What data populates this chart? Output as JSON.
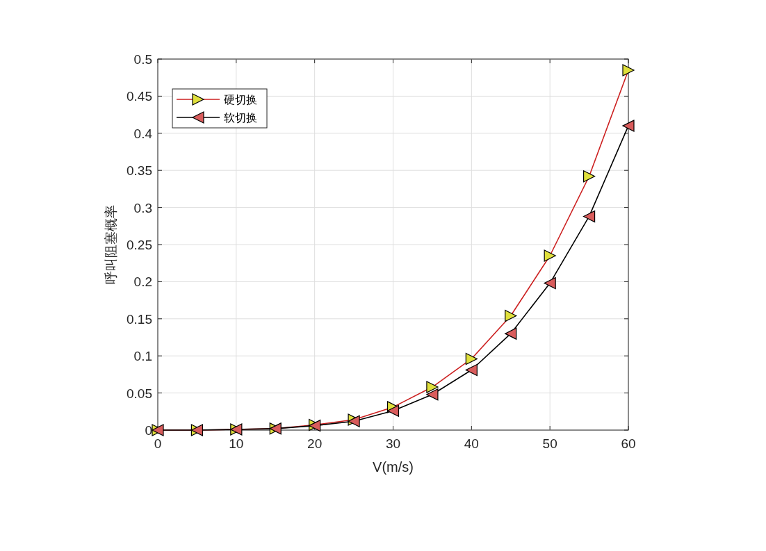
{
  "chart_data": {
    "type": "line",
    "xlabel": "V(m/s)",
    "ylabel": "呼叫阻塞概率",
    "x": [
      0,
      5,
      10,
      15,
      20,
      25,
      30,
      35,
      40,
      45,
      50,
      55,
      60
    ],
    "series": [
      {
        "name": "硬切换",
        "color": "#cc2020",
        "colors": [
          "#e0e03c",
          "#e0e03c",
          "#e0e03c",
          "#e0e03c",
          "#e0e03c",
          "#e0e03c",
          "#e0e03c",
          "#e0e03c",
          "#e0e03c",
          "#e0e03c",
          "#e0e03c",
          "#e0e03c",
          "#e0e03c"
        ],
        "values": [
          0,
          0,
          0.001,
          0.002,
          0.007,
          0.014,
          0.031,
          0.058,
          0.096,
          0.154,
          0.235,
          0.342,
          0.485
        ]
      },
      {
        "name": "软切换",
        "color": "#000000",
        "colors": [
          "#d95c5c",
          "#d95c5c",
          "#d95c5c",
          "#d95c5c",
          "#d95c5c",
          "#d95c5c",
          "#d95c5c",
          "#d95c5c",
          "#d95c5c",
          "#d95c5c",
          "#d95c5c",
          "#d95c5c",
          "#d95c5c"
        ],
        "values": [
          0,
          0,
          0.001,
          0.002,
          0.006,
          0.012,
          0.026,
          0.048,
          0.081,
          0.13,
          0.198,
          0.288,
          0.41
        ]
      }
    ],
    "xlim": [
      0,
      60
    ],
    "xticks": [
      0,
      10,
      20,
      30,
      40,
      50,
      60
    ],
    "ylim": [
      0,
      0.5
    ],
    "yticks": [
      0,
      0.05,
      0.1,
      0.15,
      0.2,
      0.25,
      0.3,
      0.35,
      0.4,
      0.45,
      0.5
    ],
    "grid": true,
    "legend": "top left",
    "marker": "triangle",
    "line_style": "solid"
  }
}
